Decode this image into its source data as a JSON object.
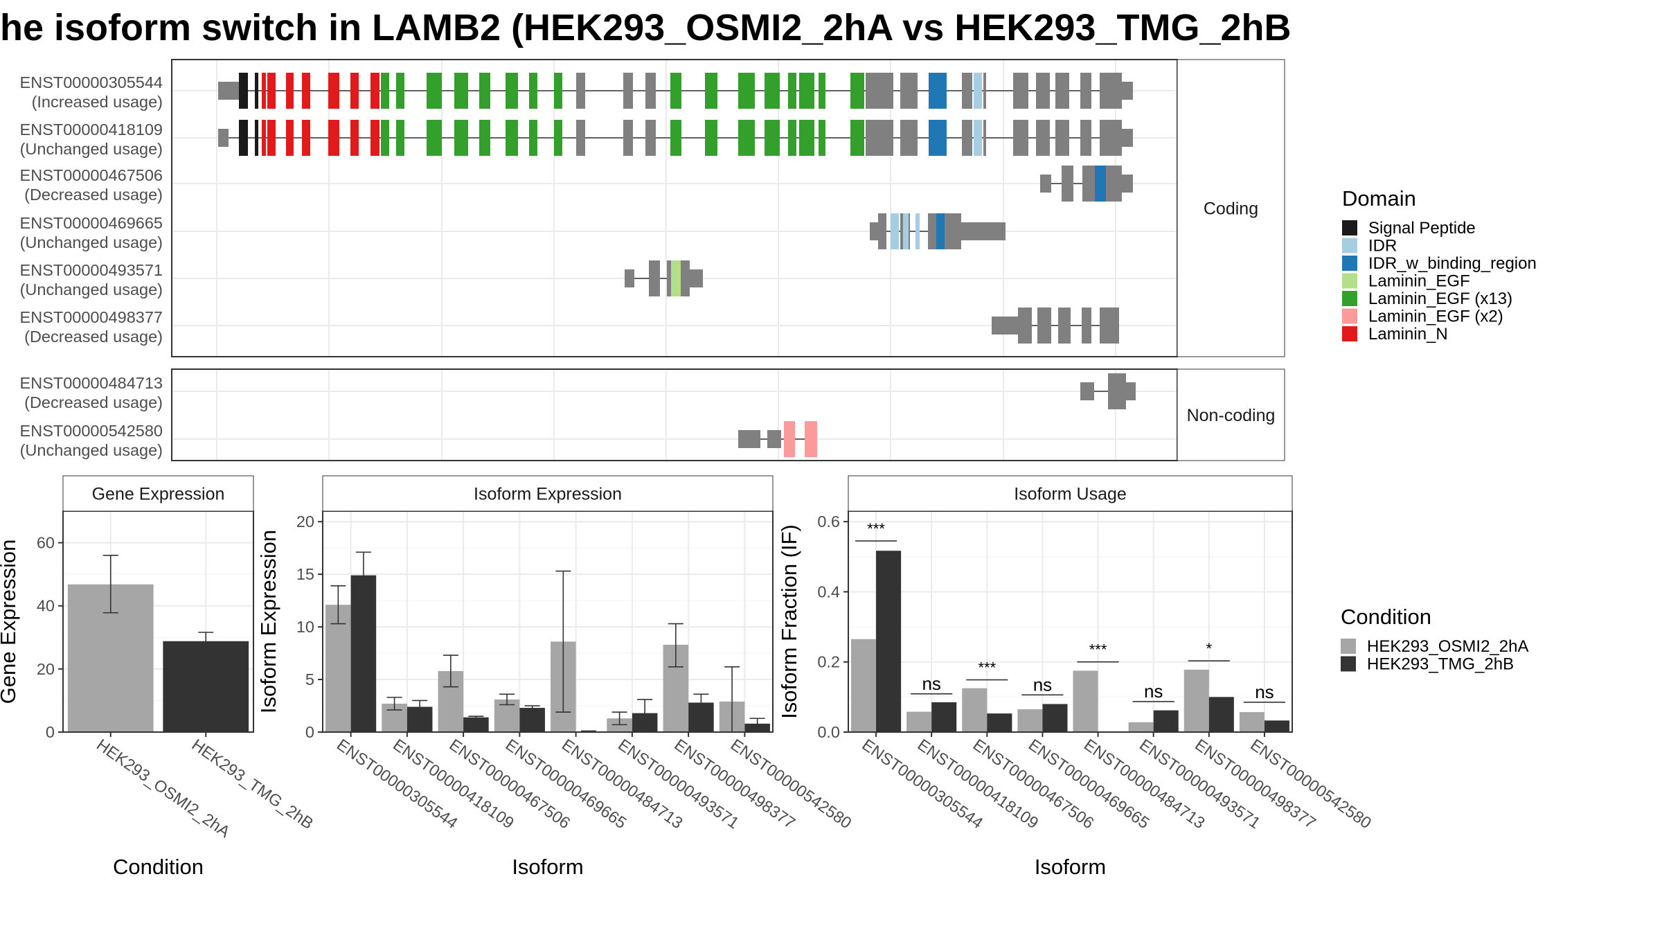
{
  "title": "he isoform switch in LAMB2 (HEK293_OSMI2_2hA vs HEK293_TMG_2hB",
  "colors": {
    "Signal Peptide": "#1a1a1a",
    "IDR": "#a6cee3",
    "IDR_w_binding_region": "#1f78b4",
    "Laminin_EGF": "#b2df8a",
    "Laminin_EGF (x13)": "#33a02c",
    "Laminin_EGF (x2)": "#fb9a99",
    "Laminin_N": "#e31a1c",
    "exon": "#808080",
    "condA": "#a6a6a6",
    "condB": "#333333"
  },
  "structure": {
    "coding_label": "Coding",
    "noncoding_label": "Non-coding",
    "coding": [
      {
        "id": "ENST00000305544",
        "usage": "(Increased usage)"
      },
      {
        "id": "ENST00000418109",
        "usage": "(Unchanged usage)"
      },
      {
        "id": "ENST00000467506",
        "usage": "(Decreased usage)"
      },
      {
        "id": "ENST00000469665",
        "usage": "(Unchanged usage)"
      },
      {
        "id": "ENST00000493571",
        "usage": "(Unchanged usage)"
      },
      {
        "id": "ENST00000498377",
        "usage": "(Decreased usage)"
      }
    ],
    "noncoding": [
      {
        "id": "ENST00000484713",
        "usage": "(Decreased usage)"
      },
      {
        "id": "ENST00000542580",
        "usage": "(Unchanged usage)"
      }
    ]
  },
  "legend_domain": {
    "title": "Domain",
    "items": [
      "Signal Peptide",
      "IDR",
      "IDR_w_binding_region",
      "Laminin_EGF",
      "Laminin_EGF (x13)",
      "Laminin_EGF (x2)",
      "Laminin_N"
    ]
  },
  "legend_condition": {
    "title": "Condition",
    "items": [
      "HEK293_OSMI2_2hA",
      "HEK293_TMG_2hB"
    ]
  },
  "chart_data": [
    {
      "type": "bar",
      "title": "Gene Expression",
      "xlabel": "Condition",
      "ylabel": "Gene Expression",
      "ylim": [
        0,
        70
      ],
      "yticks": [
        0,
        20,
        40,
        60
      ],
      "categories": [
        "HEK293_OSMI2_2hA",
        "HEK293_TMG_2hB"
      ],
      "values": [
        46.8,
        28.8
      ],
      "error_low": [
        37.8,
        26.0
      ],
      "error_high": [
        56.0,
        31.6
      ]
    },
    {
      "type": "bar",
      "title": "Isoform Expression",
      "xlabel": "Isoform",
      "ylabel": "Isoform Expression",
      "ylim": [
        0,
        21
      ],
      "yticks": [
        0,
        5,
        10,
        15,
        20
      ],
      "categories": [
        "ENST00000305544",
        "ENST00000418109",
        "ENST00000467506",
        "ENST00000469665",
        "ENST00000484713",
        "ENST00000493571",
        "ENST00000498377",
        "ENST00000542580"
      ],
      "series": [
        {
          "name": "HEK293_OSMI2_2hA",
          "values": [
            12.1,
            2.7,
            5.8,
            3.1,
            8.6,
            1.3,
            8.3,
            2.9
          ],
          "error_low": [
            10.3,
            2.1,
            4.3,
            2.6,
            1.9,
            0.7,
            6.2,
            0.0
          ],
          "error_high": [
            13.9,
            3.3,
            7.3,
            3.6,
            15.3,
            1.9,
            10.3,
            6.2
          ]
        },
        {
          "name": "HEK293_TMG_2hB",
          "values": [
            14.9,
            2.4,
            1.4,
            2.3,
            0.05,
            1.8,
            2.8,
            0.8
          ],
          "error_low": [
            12.7,
            1.8,
            1.3,
            2.1,
            0.0,
            0.5,
            2.0,
            0.5
          ],
          "error_high": [
            17.1,
            3.0,
            1.5,
            2.5,
            0.1,
            3.1,
            3.6,
            1.3
          ]
        }
      ]
    },
    {
      "type": "bar",
      "title": "Isoform Usage",
      "xlabel": "Isoform",
      "ylabel": "Isoform Fraction (IF)",
      "ylim": [
        0,
        0.63
      ],
      "yticks": [
        0.0,
        0.2,
        0.4,
        0.6
      ],
      "ytick_labels": [
        "0.0",
        "0.2",
        "0.4",
        "0.6"
      ],
      "categories": [
        "ENST00000305544",
        "ENST00000418109",
        "ENST00000467506",
        "ENST00000469665",
        "ENST00000484713",
        "ENST00000493571",
        "ENST00000498377",
        "ENST00000542580"
      ],
      "series": [
        {
          "name": "HEK293_OSMI2_2hA",
          "values": [
            0.265,
            0.058,
            0.125,
            0.065,
            0.175,
            0.028,
            0.178,
            0.057
          ]
        },
        {
          "name": "HEK293_TMG_2hB",
          "values": [
            0.517,
            0.085,
            0.053,
            0.08,
            0.0,
            0.062,
            0.1,
            0.033
          ]
        }
      ],
      "significance": [
        "***",
        "ns",
        "***",
        "ns",
        "***",
        "ns",
        "*",
        "ns"
      ],
      "sig_y": [
        0.545,
        0.109,
        0.149,
        0.106,
        0.2,
        0.087,
        0.203,
        0.085
      ]
    }
  ]
}
